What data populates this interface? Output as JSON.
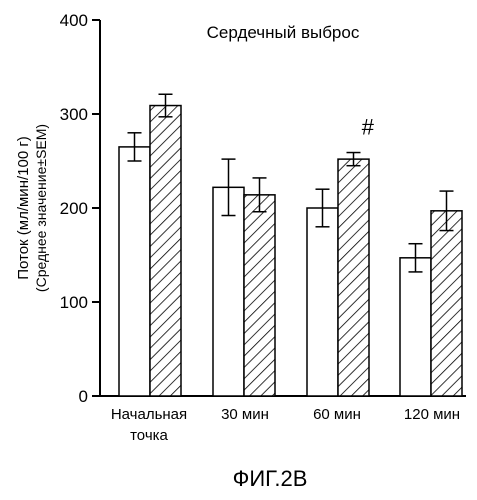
{
  "chart_data": {
    "type": "bar",
    "title": "Сердечный выброс",
    "ylabel_line1": "Поток (мл/мин/100 г)",
    "ylabel_line2": "(Среднее значение±SEM)",
    "ylim": [
      0,
      400
    ],
    "yticks": [
      0,
      100,
      200,
      300,
      400
    ],
    "categories": [
      [
        "Начальная",
        "точка"
      ],
      [
        "30 мин"
      ],
      [
        "60 мин"
      ],
      [
        "120 мин"
      ]
    ],
    "series": [
      {
        "fill": "open",
        "values": [
          265,
          222,
          200,
          147
        ],
        "errors": [
          15,
          30,
          20,
          15
        ]
      },
      {
        "fill": "hatched",
        "values": [
          309,
          214,
          252,
          197
        ],
        "errors": [
          12,
          18,
          7,
          21
        ]
      }
    ],
    "annotations": [
      {
        "category_index": 2,
        "series_index": 1,
        "text": "#"
      }
    ],
    "grid": false,
    "legend": "none",
    "figure_label": "ФИГ.2В"
  }
}
